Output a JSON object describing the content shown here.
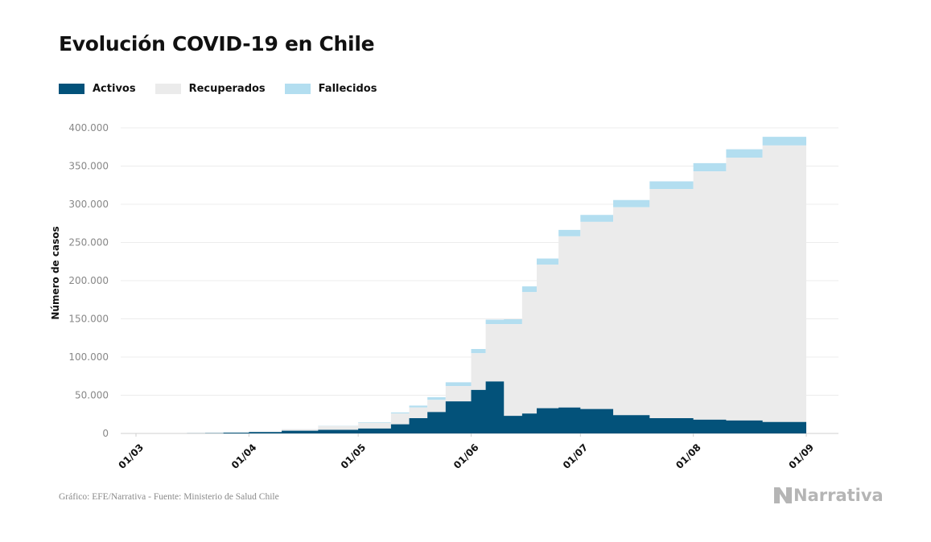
{
  "title": "Evolución COVID-19 en Chile",
  "legend": [
    {
      "label": "Activos",
      "color": "#03527a"
    },
    {
      "label": "Recuperados",
      "color": "#ebebeb"
    },
    {
      "label": "Fallecidos",
      "color": "#b3def0"
    }
  ],
  "source": "Gráfico: EFE/Narrativa - Fuente: Ministerio de Salud Chile",
  "logo_text": "Narrativa",
  "chart_data": {
    "type": "area",
    "stacked": true,
    "ylabel": "Número de casos",
    "ylim": [
      0,
      420000
    ],
    "yticks": [
      0,
      50000,
      100000,
      150000,
      200000,
      250000,
      300000,
      350000,
      400000
    ],
    "ytick_labels": [
      "0",
      "50.000",
      "100.000",
      "150.000",
      "200.000",
      "250.000",
      "300.000",
      "350.000",
      "400.000"
    ],
    "xticks": [
      "01/03",
      "01/04",
      "01/05",
      "01/06",
      "01/07",
      "01/08",
      "01/09"
    ],
    "grid": true,
    "legend_position": "top-left",
    "x": [
      "01/03",
      "05/03",
      "10/03",
      "15/03",
      "20/03",
      "25/03",
      "01/04",
      "10/04",
      "20/04",
      "01/05",
      "10/05",
      "15/05",
      "20/05",
      "25/05",
      "01/06",
      "05/06",
      "10/06",
      "15/06",
      "19/06",
      "25/06",
      "01/07",
      "10/07",
      "20/07",
      "01/08",
      "10/08",
      "20/08",
      "01/09"
    ],
    "series": [
      {
        "name": "Activos",
        "values": [
          0,
          0,
          0,
          100,
          400,
          1000,
          1900,
          3500,
          4800,
          6500,
          12000,
          20000,
          28000,
          42000,
          57000,
          68000,
          23000,
          26000,
          33000,
          34000,
          32000,
          24000,
          20000,
          18000,
          17000,
          15000,
          15500
        ]
      },
      {
        "name": "Recuperados",
        "values": [
          0,
          0,
          0,
          0,
          0,
          0,
          300,
          2000,
          5000,
          7500,
          14000,
          14000,
          16000,
          20000,
          48000,
          75000,
          120000,
          159000,
          188000,
          224000,
          245000,
          272000,
          300000,
          325000,
          344000,
          362000,
          382000
        ]
      },
      {
        "name": "Fallecidos",
        "values": [
          0,
          0,
          0,
          0,
          0,
          0,
          20,
          100,
          300,
          700,
          1500,
          2500,
          3500,
          5000,
          5500,
          6000,
          6500,
          7500,
          8000,
          8500,
          9000,
          9500,
          10000,
          10800,
          11000,
          11300,
          11500
        ]
      }
    ]
  }
}
